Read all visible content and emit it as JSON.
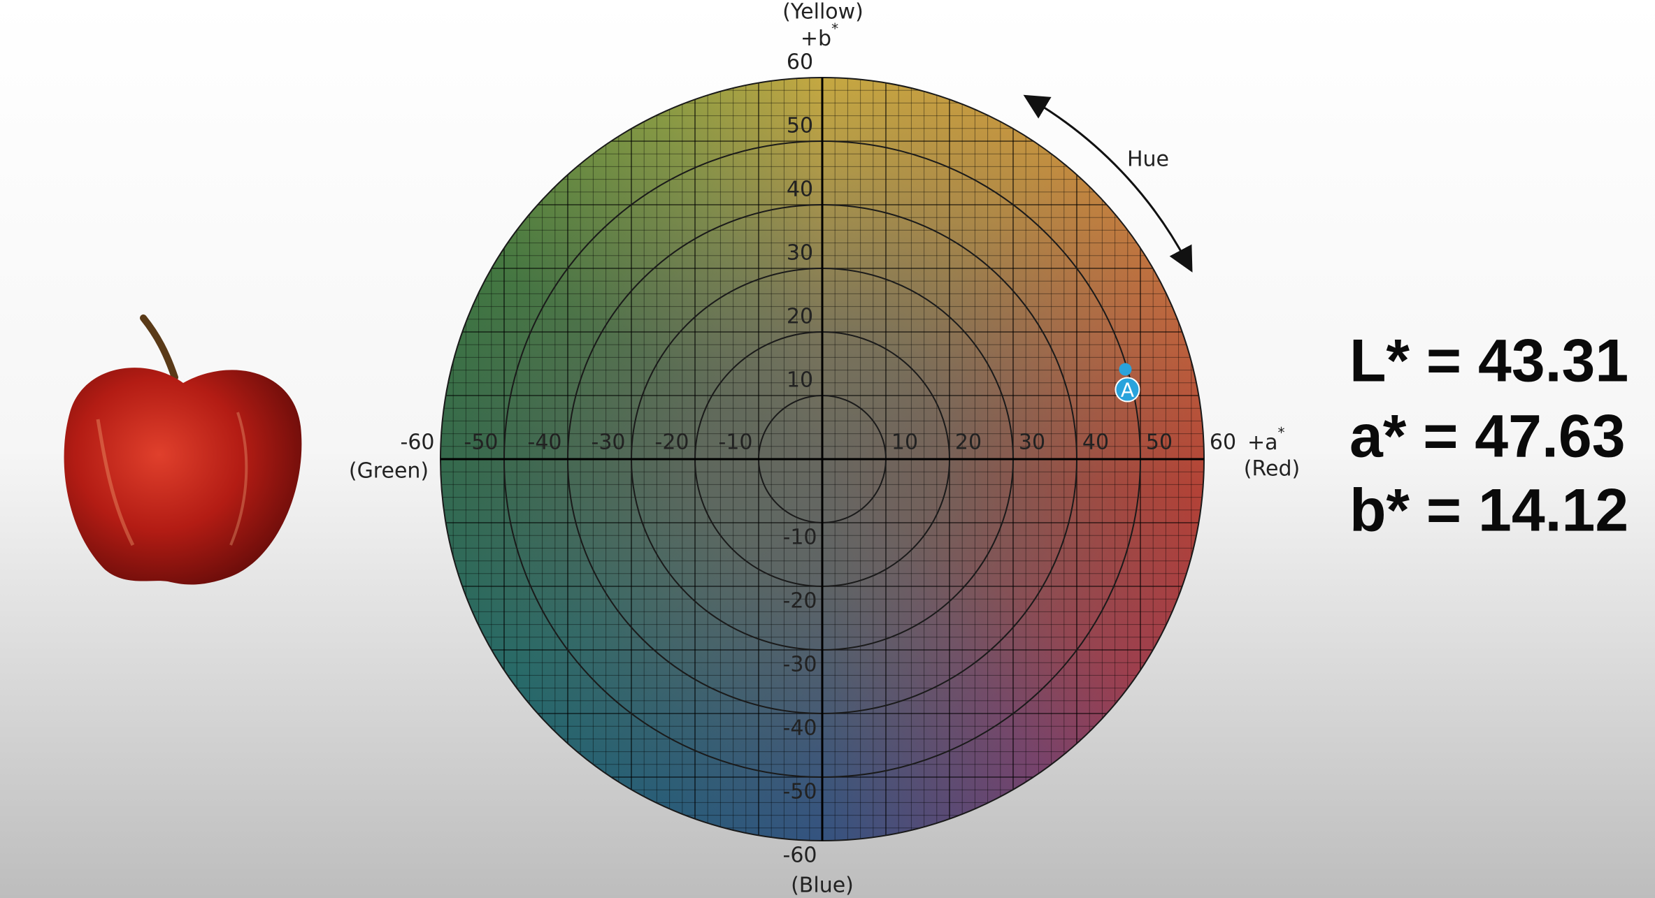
{
  "diagram": {
    "axis_labels": {
      "yellow": "(Yellow)",
      "plus_b": {
        "base": "+b",
        "sup": "*"
      },
      "plus_a": {
        "base": "+a",
        "sup": "*"
      },
      "red": "(Red)",
      "green": "(Green)",
      "blue": "(Blue)"
    },
    "range": [
      -60,
      60
    ],
    "ticks": [
      -60,
      -50,
      -40,
      -30,
      -20,
      -10,
      10,
      20,
      30,
      40,
      50,
      60
    ],
    "hue_label": "Hue",
    "point": {
      "label": "A",
      "a": 47.63,
      "b": 14.12
    },
    "readout": [
      "L* = 43.31",
      "a* = 47.63",
      "b* = 14.12"
    ]
  }
}
